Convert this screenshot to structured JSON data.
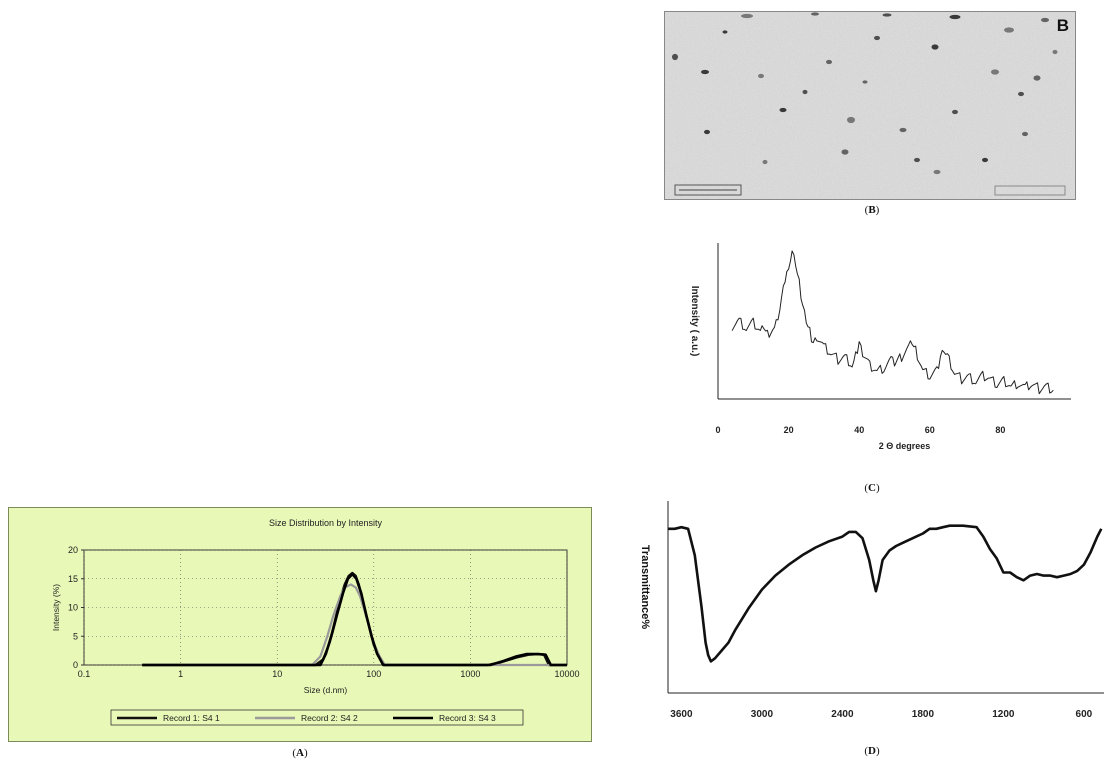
{
  "figure_labels": {
    "A": "A",
    "B": "B",
    "C": "C",
    "D": "D"
  },
  "chart_data": [
    {
      "id": "A",
      "type": "line",
      "title": "Size Distribution by Intensity",
      "xlabel": "Size (d.nm)",
      "ylabel": "Intensity (%)",
      "xscale": "log",
      "xlim": [
        0.1,
        10000
      ],
      "ylim": [
        0,
        20
      ],
      "x_ticks": [
        "0.1",
        "1",
        "10",
        "100",
        "1000",
        "10000"
      ],
      "y_ticks": [
        "0",
        "5",
        "10",
        "15",
        "20"
      ],
      "grid": true,
      "legend_position": "bottom",
      "background": "#e8f8b7",
      "series": [
        {
          "name": "Record 1: S4 1",
          "color": "#111111",
          "points": [
            [
              0.4,
              0
            ],
            [
              25,
              0
            ],
            [
              30,
              1
            ],
            [
              35,
              4
            ],
            [
              40,
              8
            ],
            [
              45,
              11.5
            ],
            [
              50,
              14
            ],
            [
              55,
              15.5
            ],
            [
              60,
              16
            ],
            [
              65,
              15.5
            ],
            [
              70,
              14
            ],
            [
              80,
              10
            ],
            [
              90,
              6.5
            ],
            [
              100,
              3.5
            ],
            [
              115,
              1.2
            ],
            [
              130,
              0
            ],
            [
              1500,
              0
            ],
            [
              2000,
              0.4
            ],
            [
              3000,
              1.3
            ],
            [
              4000,
              1.8
            ],
            [
              5000,
              1.9
            ],
            [
              5800,
              1.8
            ],
            [
              6500,
              0
            ],
            [
              10000,
              0
            ]
          ]
        },
        {
          "name": "Record 2: S4 2",
          "color": "#9a9a9a",
          "points": [
            [
              0.4,
              0
            ],
            [
              23,
              0
            ],
            [
              28,
              1.5
            ],
            [
              33,
              5
            ],
            [
              38,
              8.5
            ],
            [
              45,
              12
            ],
            [
              50,
              13.5
            ],
            [
              58,
              14
            ],
            [
              65,
              13.5
            ],
            [
              72,
              12
            ],
            [
              80,
              9.5
            ],
            [
              90,
              6.5
            ],
            [
              100,
              3.8
            ],
            [
              115,
              1.5
            ],
            [
              130,
              0
            ],
            [
              10000,
              0
            ]
          ]
        },
        {
          "name": "Record 3: S4 3",
          "color": "#000000",
          "points": [
            [
              0.4,
              0
            ],
            [
              28,
              0
            ],
            [
              32,
              2
            ],
            [
              37,
              5.5
            ],
            [
              42,
              9
            ],
            [
              48,
              12.5
            ],
            [
              54,
              15
            ],
            [
              60,
              15.8
            ],
            [
              66,
              15
            ],
            [
              74,
              12.5
            ],
            [
              84,
              8.5
            ],
            [
              95,
              5
            ],
            [
              108,
              2
            ],
            [
              125,
              0
            ],
            [
              1600,
              0
            ],
            [
              2200,
              0.7
            ],
            [
              3000,
              1.5
            ],
            [
              3800,
              1.9
            ],
            [
              5000,
              1.9
            ],
            [
              6000,
              1.8
            ],
            [
              6800,
              0
            ],
            [
              10000,
              0
            ]
          ]
        }
      ]
    },
    {
      "id": "C",
      "type": "line",
      "xlabel": "2 Θ degrees",
      "ylabel": "Intensity ( a.u.)",
      "xlim": [
        0,
        100
      ],
      "x_ticks": [
        "0",
        "20",
        "40",
        "60",
        "80"
      ],
      "x_tick_values": [
        0,
        20,
        40,
        60,
        80
      ],
      "color": "#222222",
      "points": [
        [
          4,
          0.48
        ],
        [
          6,
          0.52
        ],
        [
          8,
          0.46
        ],
        [
          10,
          0.5
        ],
        [
          12,
          0.44
        ],
        [
          13,
          0.48
        ],
        [
          14,
          0.42
        ],
        [
          16,
          0.47
        ],
        [
          17,
          0.55
        ],
        [
          18,
          0.66
        ],
        [
          19,
          0.8
        ],
        [
          20,
          0.92
        ],
        [
          21,
          1.0
        ],
        [
          22,
          0.92
        ],
        [
          23,
          0.78
        ],
        [
          24,
          0.62
        ],
        [
          25,
          0.52
        ],
        [
          26,
          0.44
        ],
        [
          27,
          0.36
        ],
        [
          28,
          0.4
        ],
        [
          30,
          0.33
        ],
        [
          32,
          0.28
        ],
        [
          34,
          0.24
        ],
        [
          36,
          0.26
        ],
        [
          38,
          0.2
        ],
        [
          39,
          0.26
        ],
        [
          40,
          0.36
        ],
        [
          41,
          0.28
        ],
        [
          43,
          0.2
        ],
        [
          45,
          0.16
        ],
        [
          47,
          0.18
        ],
        [
          49,
          0.24
        ],
        [
          50,
          0.2
        ],
        [
          52,
          0.26
        ],
        [
          54,
          0.33
        ],
        [
          55,
          0.36
        ],
        [
          56,
          0.3
        ],
        [
          58,
          0.16
        ],
        [
          60,
          0.12
        ],
        [
          62,
          0.16
        ],
        [
          63,
          0.26
        ],
        [
          64,
          0.32
        ],
        [
          65,
          0.26
        ],
        [
          67,
          0.14
        ],
        [
          69,
          0.1
        ],
        [
          71,
          0.12
        ],
        [
          73,
          0.08
        ],
        [
          75,
          0.12
        ],
        [
          77,
          0.1
        ],
        [
          79,
          0.06
        ],
        [
          81,
          0.09
        ],
        [
          83,
          0.05
        ],
        [
          85,
          0.07
        ],
        [
          87,
          0.04
        ],
        [
          89,
          0.06
        ],
        [
          91,
          0.03
        ],
        [
          93,
          0.05
        ],
        [
          95,
          0.02
        ]
      ]
    },
    {
      "id": "D",
      "type": "line",
      "ylabel": "Transmittance%",
      "xlim": [
        3700,
        450
      ],
      "x_ticks": [
        "3600",
        "3000",
        "2400",
        "1800",
        "1200",
        "600"
      ],
      "x_tick_values": [
        3600,
        3000,
        2400,
        1800,
        1200,
        600
      ],
      "color": "#111111",
      "points": [
        [
          3700,
          0.95
        ],
        [
          3650,
          0.95
        ],
        [
          3600,
          0.96
        ],
        [
          3550,
          0.95
        ],
        [
          3500,
          0.78
        ],
        [
          3450,
          0.45
        ],
        [
          3420,
          0.22
        ],
        [
          3400,
          0.14
        ],
        [
          3380,
          0.1
        ],
        [
          3350,
          0.12
        ],
        [
          3300,
          0.17
        ],
        [
          3250,
          0.22
        ],
        [
          3200,
          0.3
        ],
        [
          3100,
          0.44
        ],
        [
          3000,
          0.56
        ],
        [
          2900,
          0.65
        ],
        [
          2800,
          0.72
        ],
        [
          2700,
          0.78
        ],
        [
          2600,
          0.83
        ],
        [
          2500,
          0.87
        ],
        [
          2400,
          0.9
        ],
        [
          2350,
          0.93
        ],
        [
          2300,
          0.93
        ],
        [
          2250,
          0.89
        ],
        [
          2200,
          0.75
        ],
        [
          2170,
          0.62
        ],
        [
          2150,
          0.55
        ],
        [
          2130,
          0.62
        ],
        [
          2100,
          0.75
        ],
        [
          2050,
          0.81
        ],
        [
          2000,
          0.84
        ],
        [
          1950,
          0.86
        ],
        [
          1900,
          0.88
        ],
        [
          1850,
          0.9
        ],
        [
          1800,
          0.92
        ],
        [
          1750,
          0.95
        ],
        [
          1700,
          0.95
        ],
        [
          1650,
          0.96
        ],
        [
          1600,
          0.97
        ],
        [
          1500,
          0.97
        ],
        [
          1400,
          0.96
        ],
        [
          1350,
          0.9
        ],
        [
          1300,
          0.82
        ],
        [
          1250,
          0.76
        ],
        [
          1200,
          0.67
        ],
        [
          1150,
          0.67
        ],
        [
          1100,
          0.64
        ],
        [
          1050,
          0.62
        ],
        [
          1000,
          0.65
        ],
        [
          950,
          0.66
        ],
        [
          900,
          0.65
        ],
        [
          850,
          0.65
        ],
        [
          800,
          0.64
        ],
        [
          750,
          0.65
        ],
        [
          700,
          0.66
        ],
        [
          650,
          0.68
        ],
        [
          600,
          0.72
        ],
        [
          550,
          0.8
        ],
        [
          500,
          0.9
        ],
        [
          470,
          0.95
        ]
      ]
    }
  ]
}
